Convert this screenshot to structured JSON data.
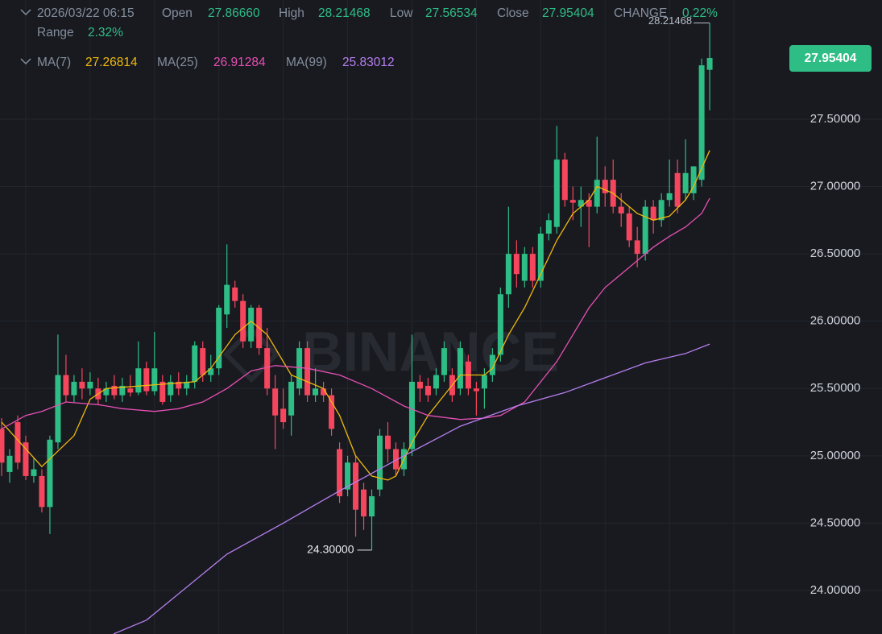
{
  "chart_data": {
    "type": "candlestick",
    "header": {
      "time": "2026/03/22 06:15",
      "fields": [
        {
          "label": "Open",
          "value": "27.86660"
        },
        {
          "label": "High",
          "value": "28.21468"
        },
        {
          "label": "Low",
          "value": "27.56534"
        },
        {
          "label": "Close",
          "value": "27.95404"
        },
        {
          "label": "CHANGE",
          "value": "0.22%"
        }
      ],
      "range": {
        "label": "Range",
        "value": "2.32%"
      }
    },
    "watermark": "BINANCE",
    "last_price_label": "27.95404",
    "high_label": "28.21468",
    "low_label": "24.30000",
    "up_color": "#2ebd85",
    "down_color": "#f6465d",
    "open": [
      25.2,
      24.88,
      25.25,
      25.1,
      24.85,
      24.85,
      24.62,
      25.1,
      25.6,
      25.45,
      25.55,
      25.5,
      25.5,
      25.45,
      25.52,
      25.45,
      25.5,
      25.47,
      25.65,
      25.48,
      25.55,
      25.45,
      25.55,
      25.5,
      25.55,
      25.8,
      25.6,
      25.65,
      26.05,
      26.25,
      26.15,
      25.85,
      26.1,
      25.8,
      25.5,
      25.35,
      25.3,
      25.5,
      25.8,
      25.45,
      25.5,
      25.45,
      25.05,
      24.75,
      24.95,
      24.75,
      24.55,
      24.75,
      25.15,
      25.05,
      24.9,
      25.05,
      25.55,
      25.52,
      25.5,
      25.6,
      25.6,
      25.5,
      25.7,
      25.5,
      25.5,
      25.6,
      25.75,
      26.2,
      26.5,
      26.3,
      26.5,
      26.3,
      26.65,
      26.7,
      27.2,
      26.9,
      26.85,
      26.9,
      26.85,
      27.05,
      27.05,
      26.85,
      26.8,
      26.6,
      26.5,
      26.85,
      26.75,
      26.9,
      27.1,
      26.95,
      26.95,
      27.05,
      27.8666
    ],
    "high": [
      25.28,
      25.05,
      25.3,
      25.15,
      24.98,
      24.9,
      25.15,
      25.9,
      25.75,
      25.6,
      25.65,
      25.62,
      25.58,
      25.55,
      25.6,
      25.58,
      25.6,
      25.85,
      25.7,
      25.92,
      25.6,
      25.6,
      25.62,
      25.6,
      25.85,
      25.85,
      25.75,
      26.12,
      26.57,
      26.3,
      26.2,
      26.12,
      26.12,
      25.95,
      25.6,
      25.5,
      25.6,
      25.85,
      25.85,
      25.65,
      25.55,
      25.5,
      25.1,
      25.0,
      25.0,
      24.8,
      24.75,
      25.2,
      25.25,
      25.1,
      25.1,
      25.9,
      25.6,
      25.58,
      25.65,
      25.85,
      25.65,
      25.85,
      25.75,
      25.55,
      25.65,
      25.8,
      26.25,
      26.85,
      26.6,
      26.55,
      26.55,
      26.7,
      26.8,
      27.45,
      27.25,
      27.0,
      27.0,
      26.95,
      27.37,
      27.15,
      27.2,
      26.95,
      26.85,
      26.7,
      26.9,
      26.9,
      26.95,
      27.2,
      27.2,
      27.35,
      27.15,
      27.95,
      28.21468
    ],
    "low": [
      24.85,
      24.8,
      24.9,
      24.82,
      24.8,
      24.58,
      24.42,
      25.05,
      25.4,
      25.4,
      25.42,
      25.45,
      25.38,
      25.4,
      25.42,
      25.4,
      25.44,
      25.45,
      25.45,
      25.45,
      25.38,
      25.4,
      25.45,
      25.45,
      25.5,
      25.55,
      25.55,
      25.6,
      25.95,
      26.1,
      25.8,
      25.8,
      25.75,
      25.45,
      25.05,
      25.2,
      25.15,
      25.45,
      25.4,
      25.4,
      25.4,
      25.15,
      24.65,
      24.7,
      24.4,
      24.45,
      24.3,
      24.7,
      24.95,
      24.85,
      24.85,
      25.0,
      25.4,
      25.4,
      25.45,
      25.55,
      25.4,
      25.45,
      25.45,
      25.3,
      25.35,
      25.55,
      25.7,
      26.1,
      26.25,
      26.25,
      26.25,
      26.25,
      26.6,
      26.65,
      26.85,
      26.75,
      26.7,
      26.55,
      26.8,
      26.85,
      26.8,
      26.7,
      26.55,
      26.4,
      26.45,
      26.65,
      26.7,
      26.85,
      26.8,
      26.9,
      26.9,
      27.0,
      27.56534
    ],
    "close": [
      24.95,
      25.0,
      24.95,
      24.85,
      24.9,
      24.62,
      25.12,
      25.6,
      25.45,
      25.55,
      25.5,
      25.55,
      25.42,
      25.5,
      25.45,
      25.52,
      25.47,
      25.65,
      25.48,
      25.65,
      25.4,
      25.55,
      25.5,
      25.55,
      25.82,
      25.6,
      25.65,
      26.1,
      26.27,
      26.15,
      25.85,
      26.1,
      25.8,
      25.5,
      25.3,
      25.25,
      25.55,
      25.8,
      25.45,
      25.5,
      25.45,
      25.2,
      24.7,
      24.95,
      24.6,
      24.55,
      24.7,
      25.15,
      25.05,
      24.9,
      25.05,
      25.55,
      25.5,
      25.45,
      25.6,
      25.8,
      25.45,
      25.8,
      25.5,
      25.48,
      25.6,
      25.75,
      26.2,
      26.5,
      26.35,
      26.5,
      26.3,
      26.65,
      26.75,
      27.2,
      26.9,
      26.88,
      26.9,
      26.85,
      27.05,
      26.95,
      26.85,
      26.8,
      26.6,
      26.5,
      26.85,
      26.75,
      26.9,
      26.95,
      26.85,
      27.1,
      27.15,
      27.9,
      27.95404
    ],
    "series": [
      {
        "name": "MA(7)",
        "color": "#f0b90b",
        "x": [
          0,
          5,
          9,
          11,
          13,
          24,
          26,
          29,
          31,
          33,
          36,
          38,
          40,
          42,
          44,
          46,
          48,
          49,
          51,
          53,
          55,
          57,
          60,
          61,
          63,
          65,
          67,
          69,
          71,
          73,
          74,
          76,
          77,
          79,
          81,
          83,
          85,
          86,
          88
        ],
        "values": [
          25.25,
          24.92,
          25.15,
          25.42,
          25.5,
          25.55,
          25.65,
          25.9,
          26.0,
          25.9,
          25.6,
          25.55,
          25.5,
          25.3,
          25.0,
          24.85,
          24.82,
          24.85,
          25.1,
          25.3,
          25.45,
          25.6,
          25.6,
          25.65,
          25.9,
          26.1,
          26.35,
          26.6,
          26.8,
          26.9,
          27.0,
          26.95,
          26.9,
          26.8,
          26.75,
          26.78,
          26.9,
          27.0,
          27.26814
        ]
      },
      {
        "name": "MA(25)",
        "color": "#e84fb3",
        "x": [
          0,
          3,
          5,
          8,
          12,
          15,
          19,
          22,
          25,
          28,
          31,
          34,
          38,
          42,
          46,
          50,
          53,
          57,
          60,
          62,
          65,
          67,
          69,
          71,
          73,
          75,
          77,
          79,
          81,
          83,
          85,
          87,
          88
        ],
        "values": [
          25.2,
          25.3,
          25.33,
          25.4,
          25.38,
          25.35,
          25.33,
          25.35,
          25.4,
          25.5,
          25.63,
          25.67,
          25.65,
          25.6,
          25.5,
          25.37,
          25.3,
          25.27,
          25.28,
          25.3,
          25.4,
          25.55,
          25.7,
          25.9,
          26.1,
          26.25,
          26.35,
          26.45,
          26.55,
          26.63,
          26.7,
          26.8,
          26.91284
        ]
      },
      {
        "name": "MA(99)",
        "color": "#b77ff0",
        "x": [
          13,
          14,
          18,
          28,
          35,
          42,
          50,
          57,
          64,
          70,
          75,
          80,
          85,
          88
        ],
        "values": [
          23.62,
          23.68,
          23.78,
          24.27,
          24.5,
          24.74,
          25.0,
          25.22,
          25.37,
          25.47,
          25.58,
          25.69,
          25.76,
          25.83012
        ]
      }
    ],
    "xlim": [
      -0.2,
      97.4
    ],
    "xticks": [
      3,
      11,
      19,
      27,
      35,
      43,
      51,
      59,
      67,
      75,
      83,
      91
    ],
    "ylim": [
      23.677,
      28.385
    ],
    "yticks": [
      {
        "value": 24.0,
        "label": "24.00000"
      },
      {
        "value": 24.5,
        "label": "24.50000"
      },
      {
        "value": 25.0,
        "label": "25.00000"
      },
      {
        "value": 25.5,
        "label": "25.50000"
      },
      {
        "value": 26.0,
        "label": "26.00000"
      },
      {
        "value": 26.5,
        "label": "26.50000"
      },
      {
        "value": 27.0,
        "label": "27.00000"
      },
      {
        "value": 27.5,
        "label": "27.50000"
      }
    ],
    "grid": true
  }
}
